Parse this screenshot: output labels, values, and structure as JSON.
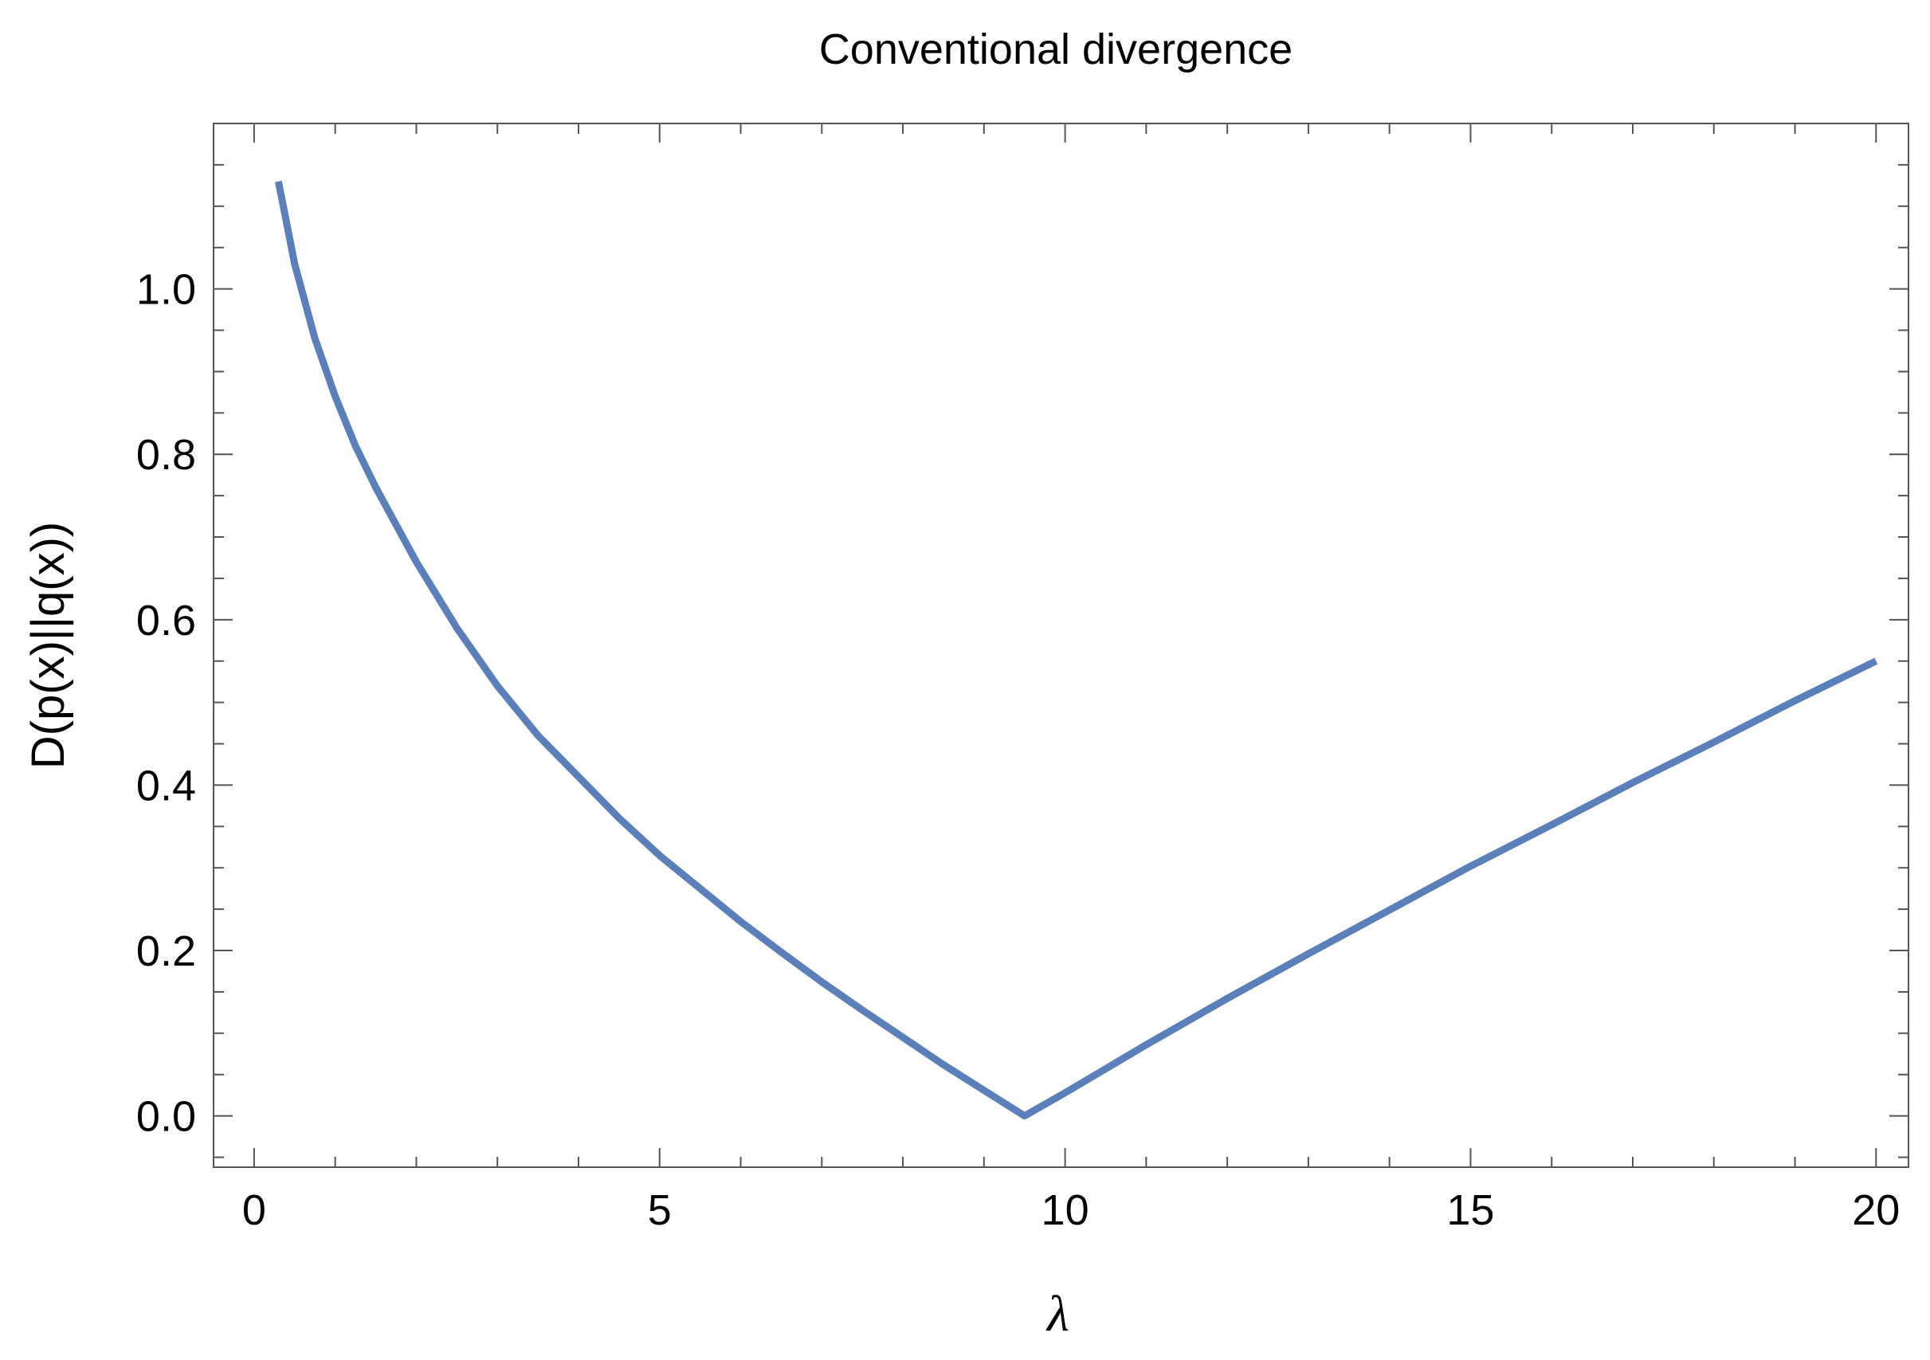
{
  "chart_data": {
    "type": "line",
    "title": "Conventional divergence",
    "xlabel": "λ",
    "ylabel": "D(p(x)||q(x))",
    "xlim": [
      -0.5,
      20.4
    ],
    "ylim": [
      -0.062,
      1.2
    ],
    "x_ticks": [
      0,
      5,
      10,
      15,
      20
    ],
    "x_tick_labels": [
      "0",
      "5",
      "10",
      "15",
      "20"
    ],
    "y_ticks": [
      0.0,
      0.2,
      0.4,
      0.6,
      0.8,
      1.0
    ],
    "y_tick_labels": [
      "0.0",
      "0.2",
      "0.4",
      "0.6",
      "0.8",
      "1.0"
    ],
    "grid": false,
    "series": [
      {
        "color": "#5b7fb9",
        "x": [
          0.3,
          0.5,
          0.75,
          1,
          1.25,
          1.5,
          2,
          2.5,
          3,
          3.5,
          4,
          4.5,
          5,
          5.5,
          6,
          6.5,
          7,
          7.5,
          8,
          8.5,
          9,
          9.5,
          10,
          11,
          12,
          13,
          14,
          15,
          16,
          17,
          18,
          19,
          20
        ],
        "y": [
          1.13,
          1.03,
          0.94,
          0.87,
          0.81,
          0.76,
          0.67,
          0.59,
          0.52,
          0.46,
          0.41,
          0.36,
          0.315,
          0.275,
          0.235,
          0.198,
          0.162,
          0.128,
          0.095,
          0.062,
          0.031,
          0.0,
          0.028,
          0.086,
          0.142,
          0.196,
          0.249,
          0.302,
          0.352,
          0.403,
          0.452,
          0.502,
          0.55
        ]
      }
    ]
  }
}
